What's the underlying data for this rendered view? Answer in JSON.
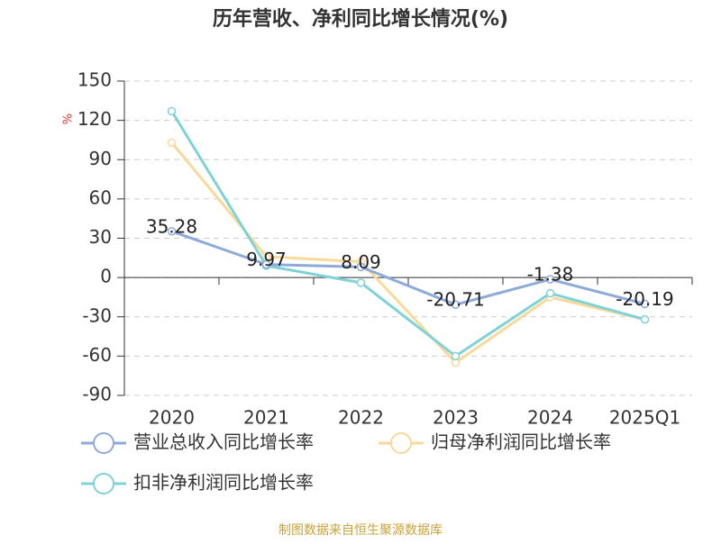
{
  "chart_data": {
    "type": "line",
    "title": "历年营收、净利同比增长情况(%)",
    "y_label": "%",
    "categories": [
      "2020",
      "2021",
      "2022",
      "2023",
      "2024",
      "2025Q1"
    ],
    "series": [
      {
        "name": "营业总收入同比增长率",
        "color": "#8eaad8",
        "values": [
          35.28,
          9.97,
          8.09,
          -20.71,
          -1.38,
          -20.19
        ],
        "show_labels": true
      },
      {
        "name": "归母净利润同比增长率",
        "color": "#f9d99a",
        "values": [
          103,
          16,
          12,
          -65,
          -15,
          -32
        ]
      },
      {
        "name": "扣非净利润同比增长率",
        "color": "#7fd3d6",
        "values": [
          127,
          9,
          -4,
          -60,
          -12,
          -32
        ]
      }
    ],
    "ylim": [
      -90,
      150
    ],
    "yticks": [
      -90,
      -60,
      -30,
      0,
      30,
      60,
      90,
      120,
      150
    ],
    "grid": true,
    "source": "制图数据来自恒生聚源数据库"
  }
}
